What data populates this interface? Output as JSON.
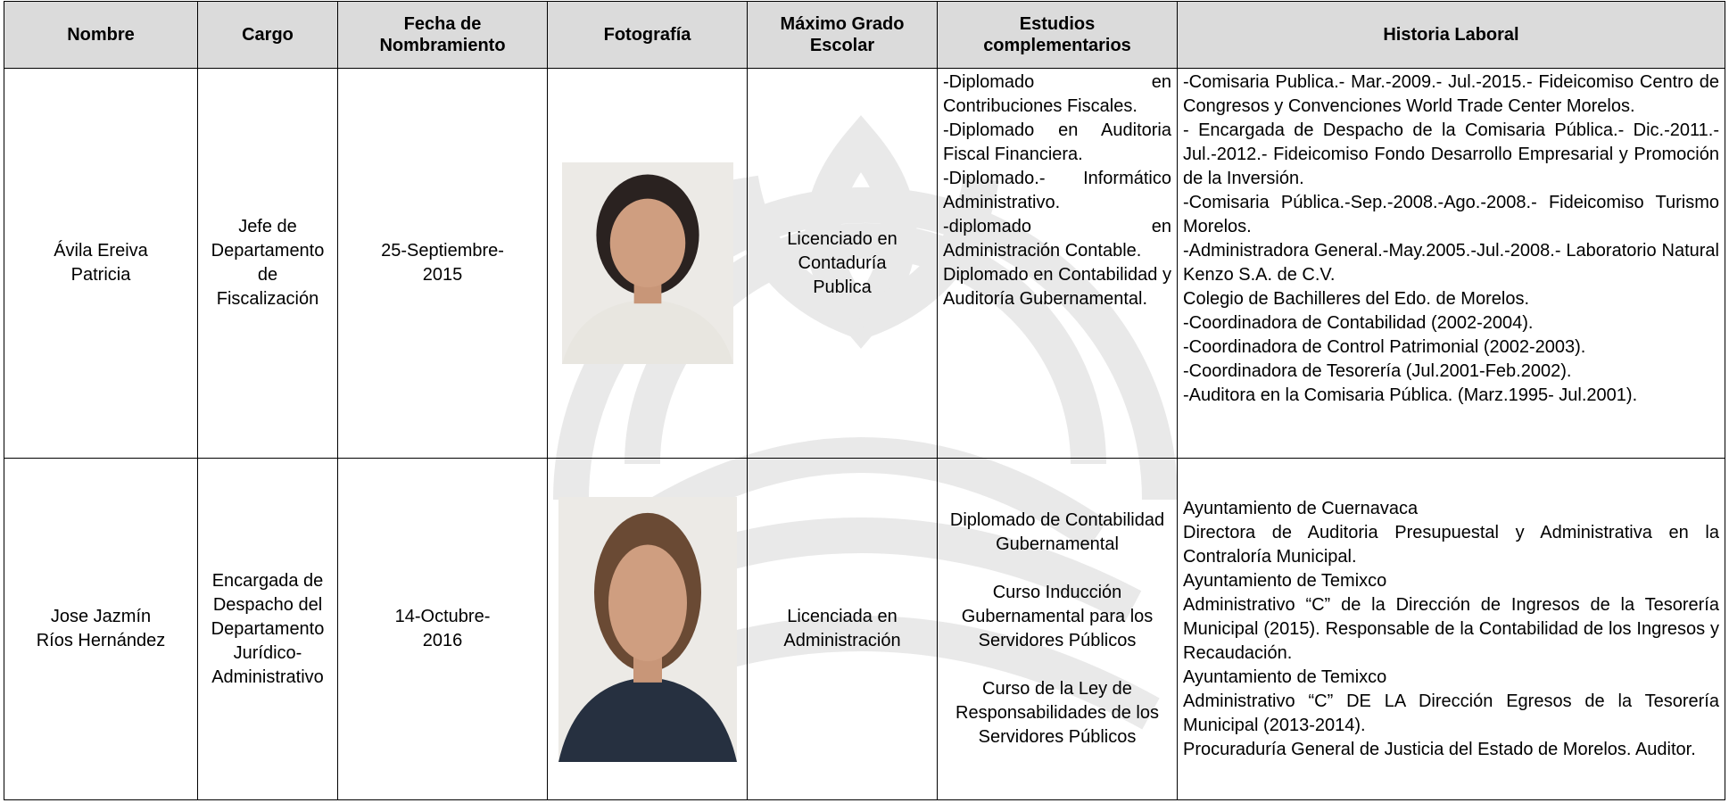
{
  "table": {
    "headers": [
      [
        "Nombre"
      ],
      [
        "Cargo"
      ],
      [
        "Fecha de",
        "Nombramiento"
      ],
      [
        "Fotografía"
      ],
      [
        "Máximo Grado",
        "Escolar"
      ],
      [
        "Estudios",
        "complementarios"
      ],
      [
        "Historia Laboral"
      ]
    ],
    "rows": [
      {
        "nombre": [
          "Ávila Ereiva",
          "Patricia"
        ],
        "cargo": [
          "Jefe de",
          "Departamento",
          "de",
          "Fiscalización"
        ],
        "fecha": [
          "25-Septiembre-",
          "2015"
        ],
        "grado": [
          "Licenciado en",
          "Contaduría",
          "Publica"
        ],
        "estudios": [
          "-Diplomado en Contribuciones Fiscales.",
          "-Diplomado en Auditoria Fiscal Financiera.",
          "-Diplomado.- Informático Administrativo.",
          "-diplomado en Administración Contable.",
          "Diplomado en Contabilidad y Auditoría Gubernamental."
        ],
        "historia": [
          "-Comisaria Publica.- Mar.-2009.- Jul.-2015.- Fideicomiso Centro de Congresos y Convenciones World Trade Center Morelos.",
          "- Encargada de Despacho de la Comisaria Pública.- Dic.-2011.- Jul.-2012.- Fideicomiso Fondo Desarrollo Empresarial y Promoción de la Inversión.",
          "-Comisaria Pública.-Sep.-2008.-Ago.-2008.- Fideicomiso Turismo Morelos.",
          "-Administradora General.-May.2005.-Jul.-2008.- Laboratorio Natural Kenzo S.A. de C.V.",
          "Colegio de Bachilleres del Edo. de Morelos.",
          "-Coordinadora de Contabilidad (2002-2004).",
          "-Coordinadora de Control Patrimonial (2002-2003).",
          "-Coordinadora de Tesorería (Jul.2001-Feb.2002).",
          "-Auditora en la Comisaria Pública. (Marz.1995- Jul.2001)."
        ]
      },
      {
        "nombre": [
          "Jose Jazmín",
          "Ríos Hernández"
        ],
        "cargo": [
          "Encargada de",
          "Despacho del",
          "Departamento",
          "Jurídico-",
          "Administrativo"
        ],
        "fecha": [
          "14-Octubre-",
          "2016"
        ],
        "grado": [
          "Licenciada en",
          "Administración"
        ],
        "estudios": [
          "Diplomado de Contabilidad Gubernamental",
          "Curso Inducción Gubernamental para los Servidores Públicos",
          "Curso de la Ley de Responsabilidades de los Servidores Públicos"
        ],
        "historia": [
          "Ayuntamiento de Cuernavaca",
          "Directora de Auditoria Presupuestal y Administrativa en la Contraloría Municipal.",
          "Ayuntamiento de Temixco",
          "Administrativo “C” de la Dirección de Ingresos de la Tesorería Municipal (2015). Responsable de la Contabilidad de los Ingresos y Recaudación.",
          "Ayuntamiento de Temixco",
          "Administrativo “C” DE LA Dirección Egresos de la Tesorería Municipal (2013-2014).",
          "Procuraduría General de Justicia del Estado de Morelos. Auditor."
        ]
      }
    ]
  }
}
